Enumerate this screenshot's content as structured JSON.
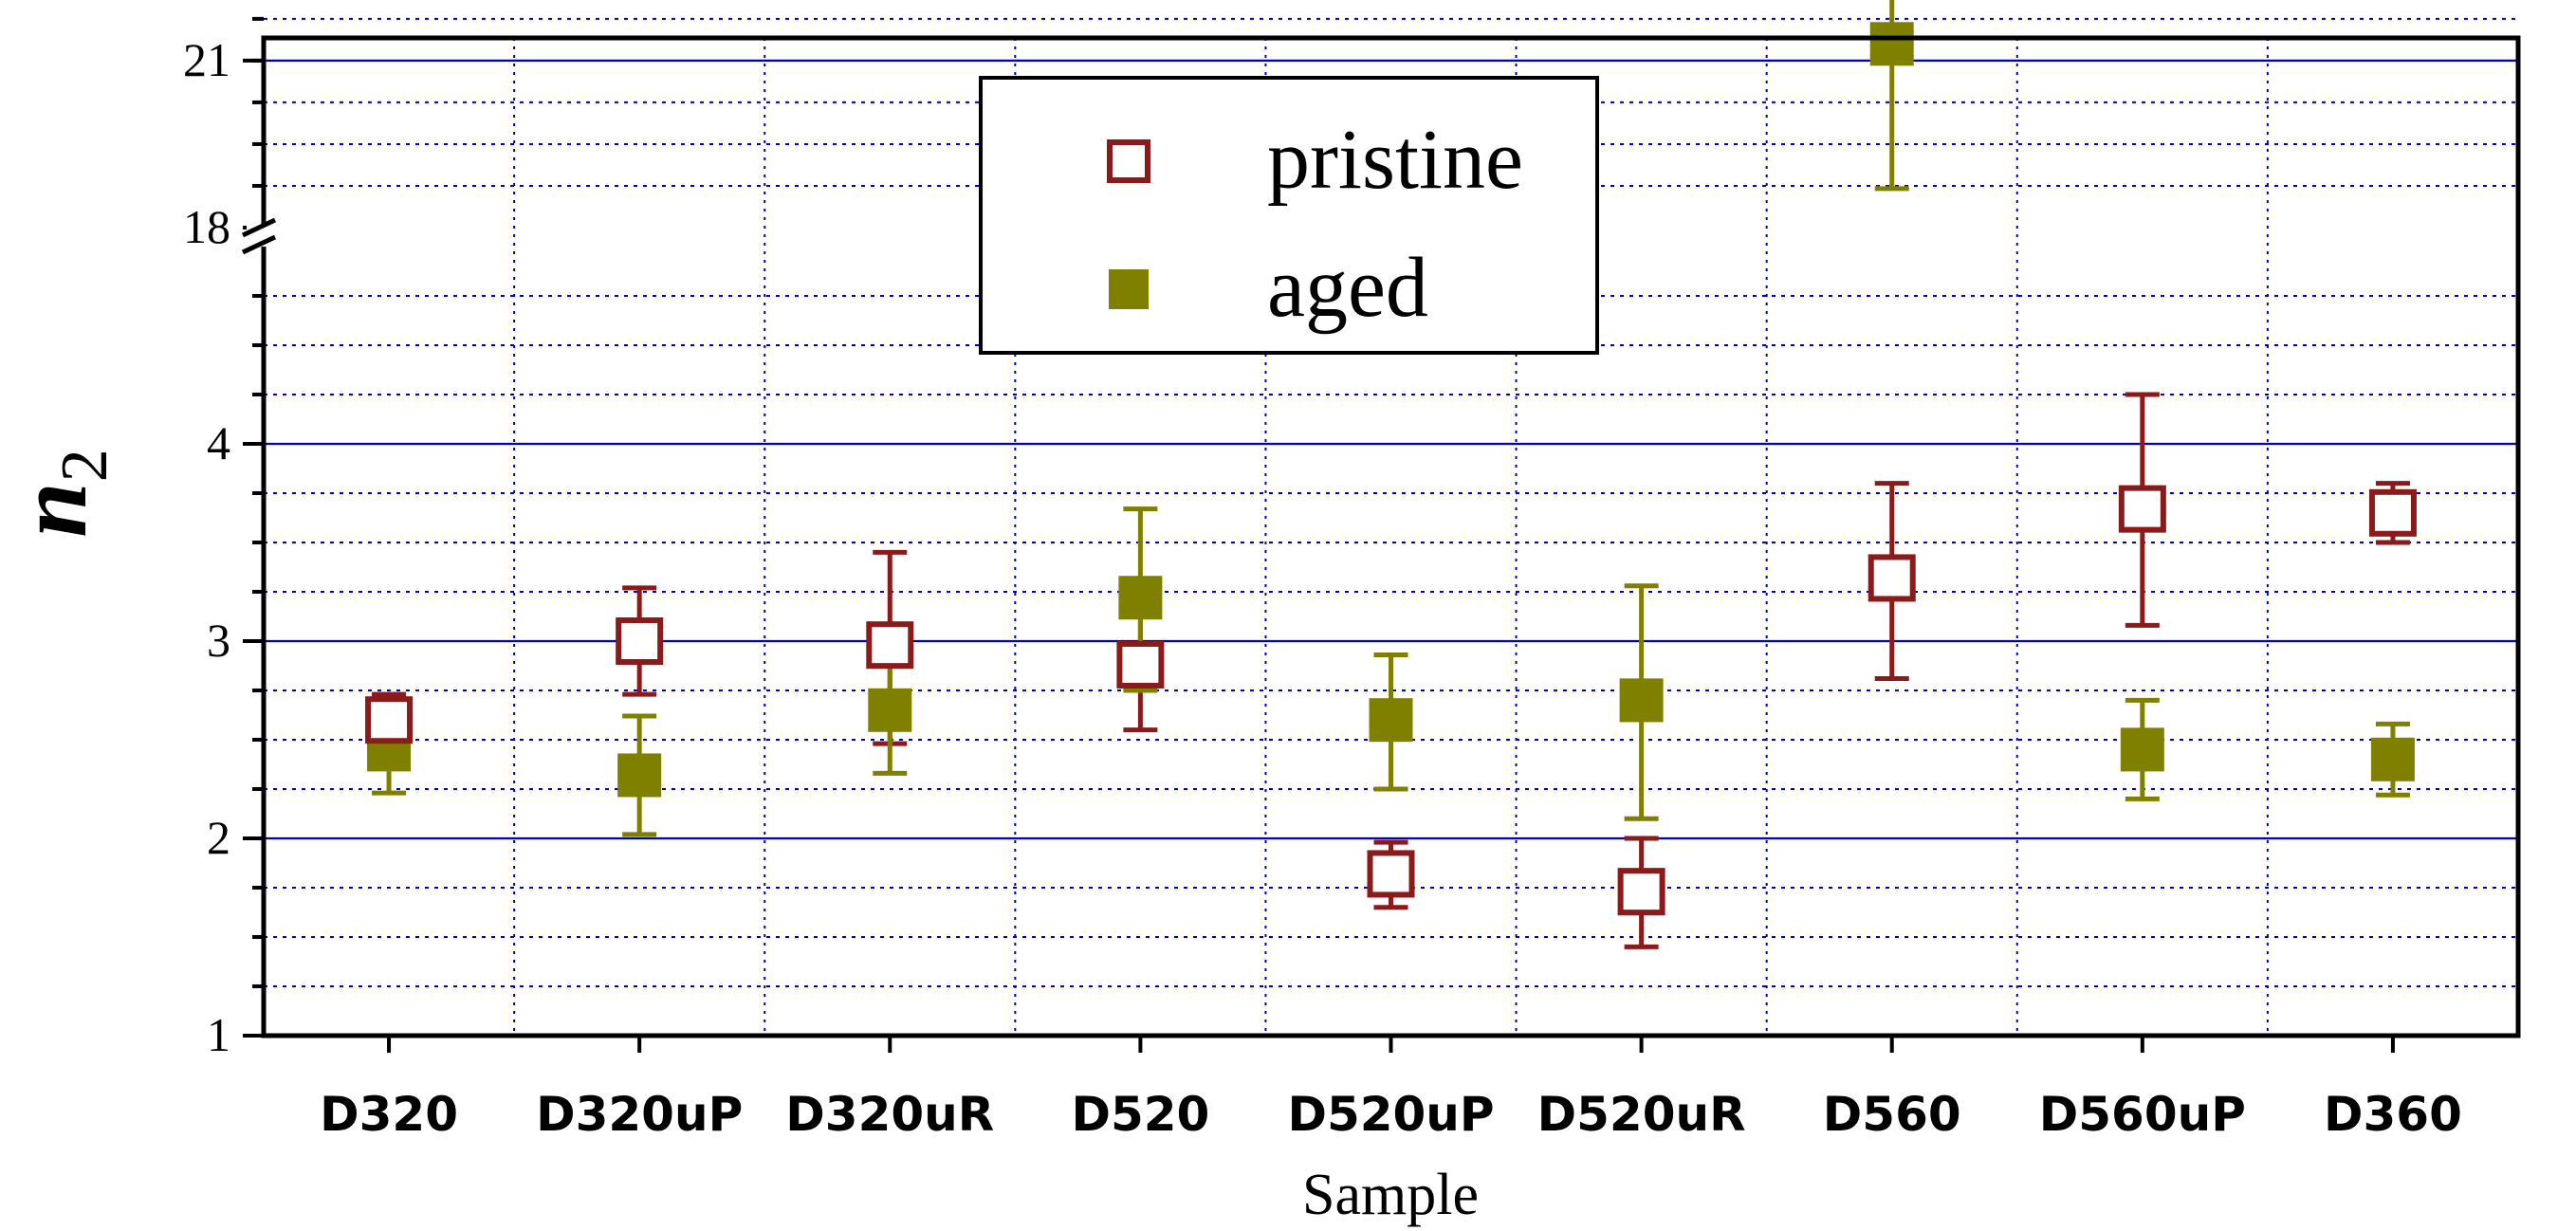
{
  "chart_data": {
    "type": "scatter",
    "title": "",
    "xlabel": "Sample",
    "ylabel": "n",
    "ylabel_subscript": "2",
    "categories": [
      "D320",
      "D320uP",
      "D320uR",
      "D520",
      "D520uP",
      "D520uR",
      "D560",
      "D560uP",
      "D360"
    ],
    "y_axis": {
      "lower_segment": {
        "range": [
          1,
          5
        ],
        "tick_labels": [
          "1",
          "2",
          "3",
          "4"
        ]
      },
      "upper_segment": {
        "range": [
          18,
          22
        ],
        "tick_labels": [
          "18",
          "21"
        ]
      },
      "axis_break": "between 5 and 18"
    },
    "grid": {
      "major_horizontal": true,
      "minor_horizontal": "dotted",
      "vertical": "dotted"
    },
    "legend": {
      "position": "top-center",
      "entries": [
        "pristine",
        "aged"
      ]
    },
    "series": [
      {
        "name": "pristine",
        "marker": "open-square",
        "color": "#8b1a1a",
        "values": [
          2.6,
          3.0,
          2.98,
          2.88,
          1.82,
          1.73,
          3.32,
          3.67,
          3.65
        ],
        "error_low": [
          2.48,
          2.73,
          2.48,
          2.55,
          1.65,
          1.45,
          2.81,
          3.08,
          3.5
        ],
        "error_high": [
          2.73,
          3.27,
          3.45,
          3.2,
          1.98,
          2.0,
          3.8,
          4.25,
          3.8
        ]
      },
      {
        "name": "aged",
        "marker": "filled-square",
        "color": "#808000",
        "values": [
          2.45,
          2.32,
          2.65,
          3.22,
          2.6,
          2.7,
          21.3,
          2.45,
          2.4
        ],
        "error_low": [
          2.23,
          2.02,
          2.33,
          2.75,
          2.25,
          2.1,
          18.7,
          2.2,
          2.22
        ],
        "error_high": [
          2.65,
          2.62,
          2.95,
          3.67,
          2.93,
          3.28,
          23.5,
          2.7,
          2.58
        ]
      }
    ]
  }
}
